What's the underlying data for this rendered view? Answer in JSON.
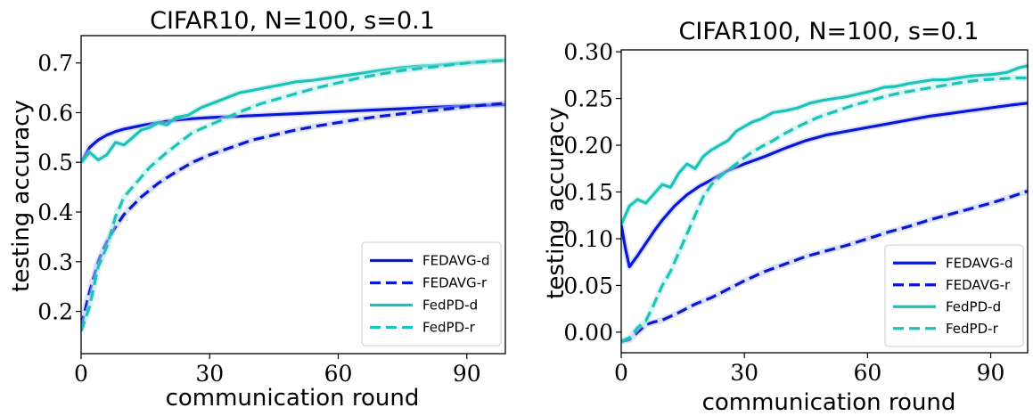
{
  "colors": {
    "fedavg": "#0a16d8",
    "fedpd": "#1dc3b8",
    "band": "#b8c3ef",
    "bandPd": "#b5ecea"
  },
  "chart_data": [
    {
      "type": "line",
      "title": "CIFAR10, N=100, s=0.1",
      "xlabel": "communication round",
      "ylabel": "testing accuracy",
      "xlim": [
        0,
        99
      ],
      "ylim": [
        0.115,
        0.755
      ],
      "xticks": [
        0,
        30,
        60,
        90
      ],
      "xtick_labels": [
        "0",
        "30",
        "60",
        "90"
      ],
      "yticks": [
        0.2,
        0.3,
        0.4,
        0.5,
        0.6,
        0.7
      ],
      "ytick_labels": [
        "0.2",
        "0.3",
        "0.4",
        "0.5",
        "0.6",
        "0.7"
      ],
      "legend": "lower-right",
      "series": [
        {
          "name": "FEDAVG-d",
          "style": "solid",
          "color": "#0a16d8",
          "x": [
            0,
            2,
            4,
            6,
            8,
            10,
            14,
            18,
            22,
            26,
            30,
            35,
            40,
            45,
            50,
            55,
            60,
            65,
            70,
            75,
            80,
            85,
            90,
            95,
            99
          ],
          "y": [
            0.5,
            0.53,
            0.545,
            0.555,
            0.562,
            0.567,
            0.574,
            0.58,
            0.585,
            0.588,
            0.59,
            0.592,
            0.594,
            0.596,
            0.598,
            0.6,
            0.602,
            0.604,
            0.606,
            0.608,
            0.61,
            0.612,
            0.614,
            0.615,
            0.616
          ]
        },
        {
          "name": "FEDAVG-r",
          "style": "dashed",
          "color": "#0a16d8",
          "x": [
            0,
            2,
            4,
            6,
            8,
            10,
            14,
            18,
            22,
            26,
            30,
            35,
            40,
            45,
            50,
            55,
            60,
            65,
            70,
            75,
            80,
            85,
            90,
            95,
            99
          ],
          "y": [
            0.17,
            0.24,
            0.3,
            0.34,
            0.37,
            0.395,
            0.43,
            0.458,
            0.48,
            0.5,
            0.515,
            0.53,
            0.545,
            0.555,
            0.565,
            0.573,
            0.58,
            0.587,
            0.593,
            0.598,
            0.603,
            0.607,
            0.612,
            0.616,
            0.619
          ]
        },
        {
          "name": "FedPD-d",
          "style": "solid",
          "color": "#1dc3b8",
          "x": [
            0,
            2,
            4,
            6,
            8,
            10,
            12,
            14,
            16,
            18,
            20,
            22,
            25,
            28,
            31,
            34,
            37,
            40,
            43,
            46,
            50,
            54,
            58,
            62,
            66,
            70,
            74,
            78,
            82,
            86,
            90,
            94,
            97,
            99
          ],
          "y": [
            0.5,
            0.52,
            0.505,
            0.515,
            0.54,
            0.535,
            0.55,
            0.565,
            0.57,
            0.58,
            0.575,
            0.59,
            0.595,
            0.61,
            0.62,
            0.63,
            0.64,
            0.645,
            0.65,
            0.655,
            0.662,
            0.665,
            0.67,
            0.675,
            0.68,
            0.685,
            0.69,
            0.693,
            0.695,
            0.698,
            0.7,
            0.703,
            0.705,
            0.705
          ]
        },
        {
          "name": "FedPD-r",
          "style": "dashed",
          "color": "#1dc3b8",
          "x": [
            0,
            2,
            4,
            6,
            8,
            10,
            12,
            14,
            16,
            18,
            20,
            23,
            26,
            30,
            34,
            38,
            42,
            46,
            50,
            55,
            60,
            65,
            70,
            75,
            80,
            85,
            90,
            95,
            99
          ],
          "y": [
            0.16,
            0.21,
            0.29,
            0.33,
            0.39,
            0.43,
            0.45,
            0.47,
            0.49,
            0.505,
            0.52,
            0.54,
            0.56,
            0.575,
            0.59,
            0.605,
            0.618,
            0.628,
            0.638,
            0.65,
            0.66,
            0.67,
            0.678,
            0.685,
            0.69,
            0.695,
            0.7,
            0.703,
            0.705
          ]
        }
      ]
    },
    {
      "type": "line",
      "title": "CIFAR100, N=100, s=0.1",
      "xlabel": "communication round",
      "ylabel": "testing accuracy",
      "xlim": [
        0,
        99
      ],
      "ylim": [
        -0.022,
        0.302
      ],
      "xticks": [
        0,
        30,
        60,
        90
      ],
      "xtick_labels": [
        "0",
        "30",
        "60",
        "90"
      ],
      "yticks": [
        0.0,
        0.05,
        0.1,
        0.15,
        0.2,
        0.25,
        0.3
      ],
      "ytick_labels": [
        "0.00",
        "0.05",
        "0.10",
        "0.15",
        "0.20",
        "0.25",
        "0.30"
      ],
      "legend": "lower-right",
      "series": [
        {
          "name": "FEDAVG-d",
          "style": "solid",
          "color": "#0a16d8",
          "x": [
            0,
            1,
            2,
            4,
            6,
            8,
            10,
            13,
            16,
            19,
            22,
            26,
            30,
            35,
            40,
            45,
            50,
            55,
            60,
            65,
            70,
            75,
            80,
            85,
            90,
            95,
            99
          ],
          "y": [
            0.115,
            0.09,
            0.07,
            0.082,
            0.095,
            0.108,
            0.12,
            0.135,
            0.147,
            0.156,
            0.163,
            0.173,
            0.18,
            0.188,
            0.197,
            0.205,
            0.211,
            0.215,
            0.219,
            0.223,
            0.227,
            0.231,
            0.234,
            0.237,
            0.24,
            0.243,
            0.245
          ]
        },
        {
          "name": "FEDAVG-r",
          "style": "dashed",
          "color": "#0a16d8",
          "x": [
            0,
            2,
            4,
            6,
            8,
            10,
            14,
            18,
            22,
            26,
            30,
            35,
            40,
            45,
            50,
            55,
            60,
            65,
            70,
            75,
            80,
            85,
            90,
            95,
            99
          ],
          "y": [
            -0.01,
            -0.008,
            0.0,
            0.008,
            0.011,
            0.013,
            0.021,
            0.03,
            0.037,
            0.046,
            0.055,
            0.065,
            0.073,
            0.081,
            0.087,
            0.093,
            0.1,
            0.107,
            0.113,
            0.12,
            0.126,
            0.132,
            0.138,
            0.145,
            0.151
          ]
        },
        {
          "name": "FedPD-d",
          "style": "solid",
          "color": "#1dc3b8",
          "x": [
            0,
            2,
            4,
            6,
            8,
            10,
            12,
            14,
            16,
            18,
            20,
            22,
            24,
            26,
            28,
            30,
            32,
            34,
            37,
            40,
            43,
            46,
            49,
            52,
            55,
            58,
            61,
            64,
            67,
            70,
            73,
            76,
            79,
            82,
            85,
            88,
            91,
            94,
            97,
            99
          ],
          "y": [
            0.115,
            0.135,
            0.142,
            0.138,
            0.148,
            0.158,
            0.155,
            0.17,
            0.18,
            0.175,
            0.188,
            0.195,
            0.2,
            0.205,
            0.215,
            0.22,
            0.225,
            0.228,
            0.235,
            0.237,
            0.24,
            0.245,
            0.248,
            0.25,
            0.252,
            0.255,
            0.258,
            0.262,
            0.263,
            0.266,
            0.268,
            0.27,
            0.27,
            0.272,
            0.274,
            0.275,
            0.276,
            0.278,
            0.283,
            0.285
          ]
        },
        {
          "name": "FedPD-r",
          "style": "dashed",
          "color": "#1dc3b8",
          "x": [
            0,
            2,
            4,
            6,
            8,
            10,
            12,
            14,
            16,
            18,
            20,
            22,
            25,
            28,
            31,
            34,
            37,
            40,
            44,
            48,
            52,
            56,
            60,
            64,
            68,
            72,
            76,
            80,
            84,
            88,
            92,
            96,
            99
          ],
          "y": [
            -0.01,
            -0.006,
            0.005,
            0.012,
            0.03,
            0.05,
            0.065,
            0.085,
            0.105,
            0.125,
            0.145,
            0.158,
            0.17,
            0.18,
            0.19,
            0.198,
            0.205,
            0.213,
            0.222,
            0.23,
            0.236,
            0.242,
            0.247,
            0.252,
            0.256,
            0.259,
            0.262,
            0.265,
            0.268,
            0.27,
            0.271,
            0.272,
            0.272
          ]
        }
      ]
    }
  ]
}
